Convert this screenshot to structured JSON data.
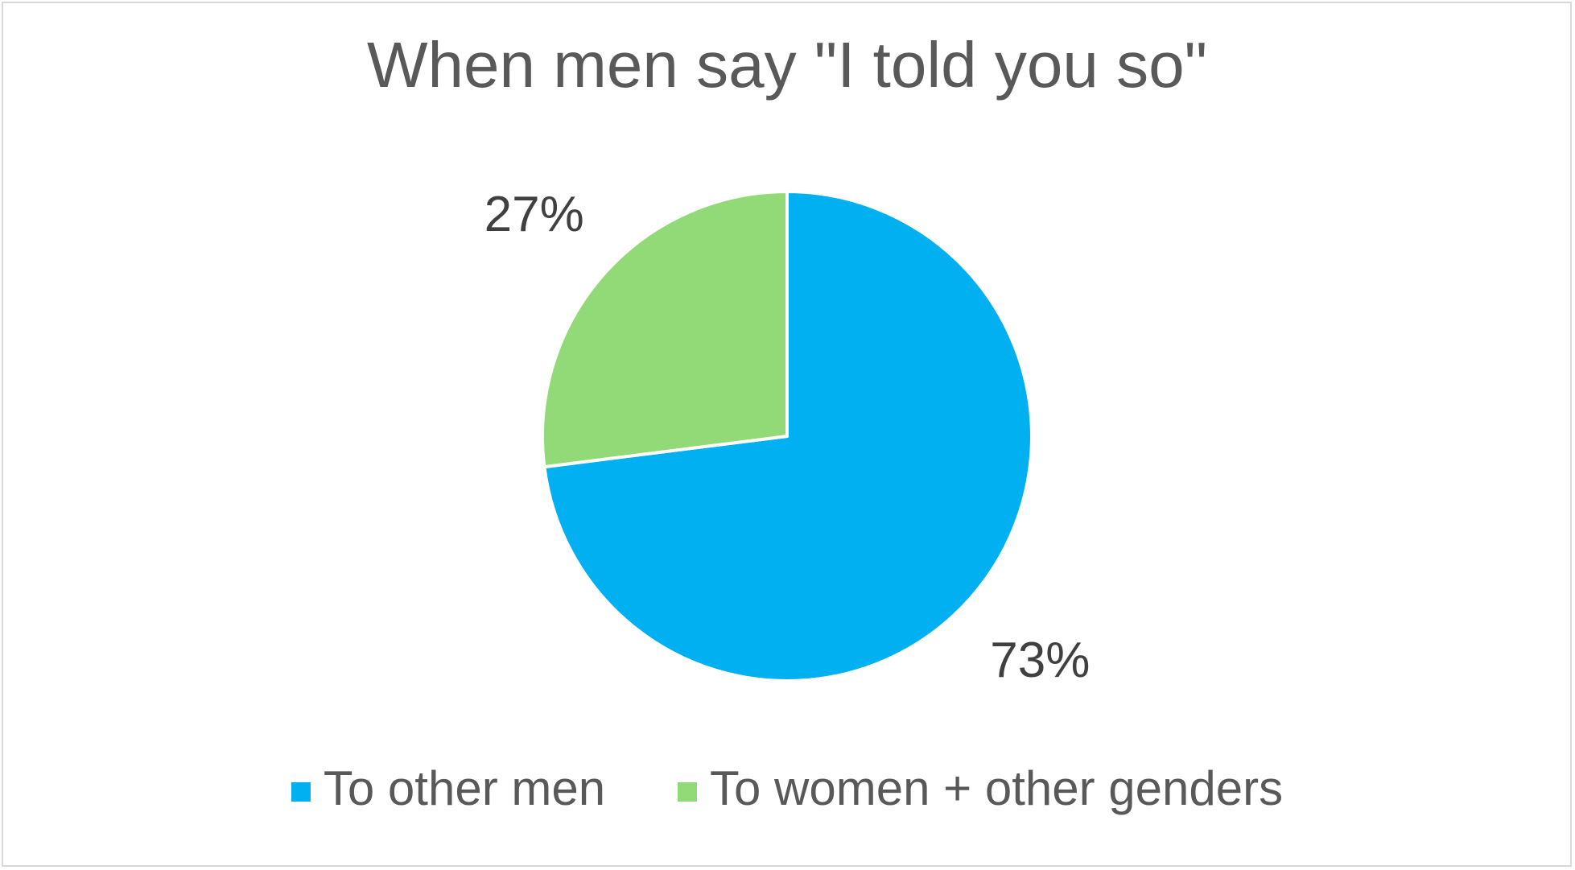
{
  "chart_data": {
    "type": "pie",
    "title": "When men say \"I told you so\"",
    "categories": [
      "To other men",
      "To women + other genders"
    ],
    "values": [
      73,
      27
    ],
    "data_labels": [
      "73%",
      "27%"
    ],
    "colors": [
      "#00B0F0",
      "#92D978"
    ],
    "slice_border_color": "#ffffff",
    "start_angle_deg": 0,
    "direction": "clockwise",
    "legend_position": "bottom"
  }
}
